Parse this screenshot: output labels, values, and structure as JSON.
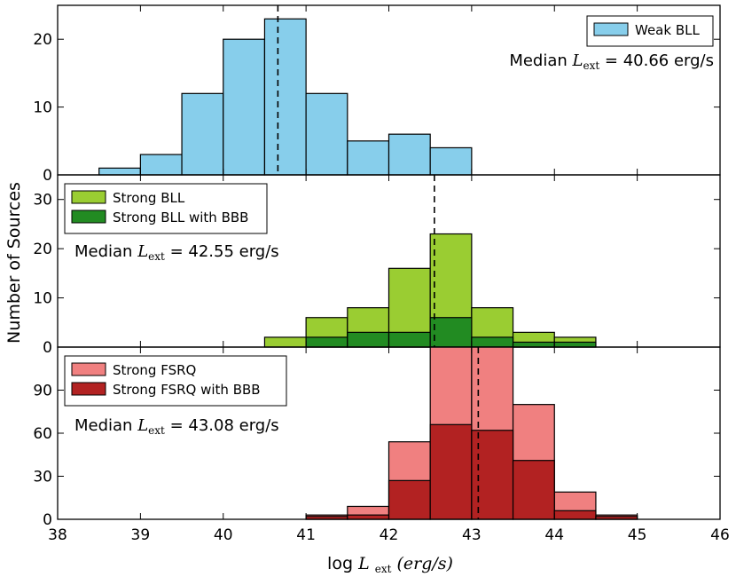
{
  "chart_data": {
    "type": "bar",
    "ylabel": "Number of Sources",
    "xlabel": {
      "prefix": "log ",
      "math": "L",
      "sub": "ext",
      "units": "(erg/s)"
    },
    "xlim": [
      38,
      46
    ],
    "x_ticks": [
      "38",
      "39",
      "40",
      "41",
      "42",
      "43",
      "44",
      "45",
      "46"
    ],
    "colors": {
      "weak_bll": "#87ceeb",
      "strong_bll": "#9acd32",
      "strong_bll_bbb": "#228b22",
      "strong_fsrq": "#f08080",
      "strong_fsrq_bbb": "#b22222"
    },
    "panels": [
      {
        "id": "weak-bll",
        "ylim": [
          0,
          25
        ],
        "y_ticks": [
          "0",
          "10",
          "20"
        ],
        "y_tick_values": [
          0,
          10,
          20
        ],
        "legend_position": "top-right",
        "median_value": 40.66,
        "median_text": {
          "prefix": "Median ",
          "math": "L",
          "sub": "ext",
          "suffix": " = 40.66 erg/s"
        },
        "series": [
          {
            "name": "Weak BLL",
            "color_key": "weak_bll",
            "bin_edges": [
              38.5,
              39.0,
              39.5,
              40.0,
              40.5,
              41.0,
              41.5,
              42.0,
              42.5,
              43.0
            ],
            "values": [
              1,
              3,
              12,
              20,
              23,
              12,
              5,
              6,
              4
            ]
          }
        ]
      },
      {
        "id": "strong-bll",
        "ylim": [
          0,
          35
        ],
        "y_ticks": [
          "0",
          "10",
          "20",
          "30"
        ],
        "y_tick_values": [
          0,
          10,
          20,
          30
        ],
        "legend_position": "top-left",
        "median_value": 42.55,
        "median_text": {
          "prefix": "Median ",
          "math": "L",
          "sub": "ext",
          "suffix": " = 42.55 erg/s"
        },
        "series": [
          {
            "name": "Strong BLL",
            "color_key": "strong_bll",
            "bin_edges": [
              40.5,
              41.0,
              41.5,
              42.0,
              42.5,
              43.0,
              43.5,
              44.0,
              44.5
            ],
            "values": [
              2,
              6,
              8,
              16,
              23,
              8,
              3,
              2
            ]
          },
          {
            "name": "Strong BLL with BBB",
            "color_key": "strong_bll_bbb",
            "bin_edges": [
              41.0,
              41.5,
              42.0,
              42.5,
              43.0,
              43.5,
              44.0,
              44.5
            ],
            "values": [
              2,
              3,
              3,
              6,
              2,
              1,
              1
            ]
          }
        ]
      },
      {
        "id": "strong-fsrq",
        "ylim": [
          0,
          120
        ],
        "y_ticks": [
          "0",
          "30",
          "60",
          "90"
        ],
        "y_tick_values": [
          0,
          30,
          60,
          90
        ],
        "legend_position": "top-left",
        "median_value": 43.08,
        "median_text": {
          "prefix": "Median ",
          "math": "L",
          "sub": "ext",
          "suffix": " = 43.08 erg/s"
        },
        "series": [
          {
            "name": "Strong FSRQ",
            "color_key": "strong_fsrq",
            "bin_edges": [
              41.0,
              41.5,
              42.0,
              42.5,
              43.0,
              43.5,
              44.0,
              44.5,
              45.0
            ],
            "values": [
              3,
              9,
              54,
              120,
              120,
              80,
              19,
              3
            ]
          },
          {
            "name": "Strong FSRQ with BBB",
            "color_key": "strong_fsrq_bbb",
            "bin_edges": [
              41.0,
              41.5,
              42.0,
              42.5,
              43.0,
              43.5,
              44.0,
              44.5,
              45.0
            ],
            "values": [
              2,
              3,
              27,
              66,
              62,
              41,
              6,
              2
            ]
          }
        ]
      }
    ]
  }
}
